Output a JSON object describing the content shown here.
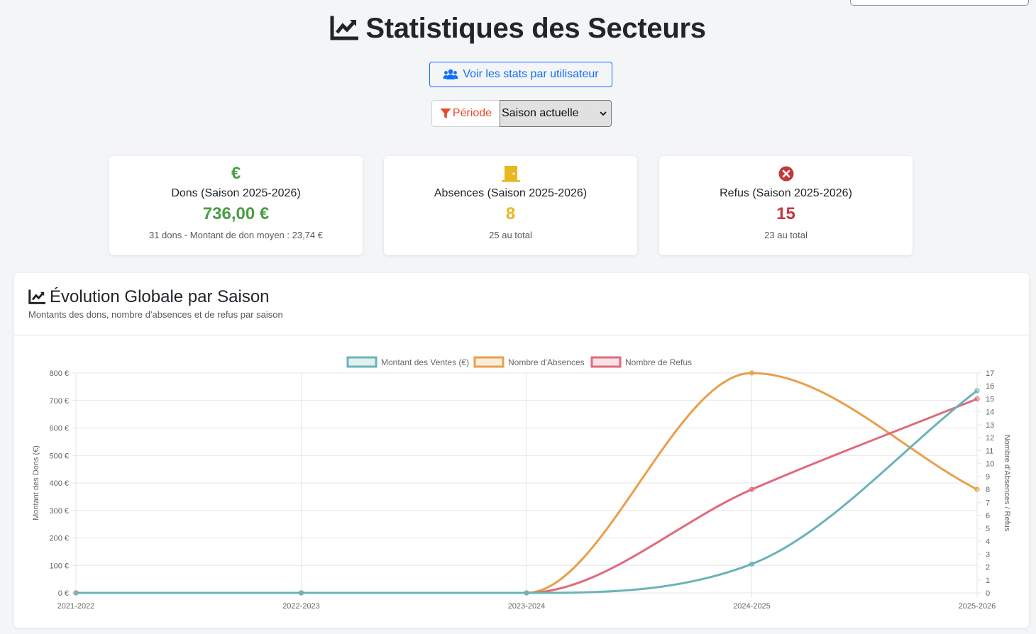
{
  "page": {
    "title": "Statistiques des Secteurs",
    "user_stats_button": "Voir les stats par utilisateur",
    "period_label": "Période",
    "period_selected": "Saison actuelle"
  },
  "stats": [
    {
      "icon": "euro-icon",
      "title": "Dons (Saison 2025-2026)",
      "value": "736,00 €",
      "sub": "31 dons - Montant de don moyen : 23,74 €",
      "color": "#4a9e45"
    },
    {
      "icon": "door-icon",
      "title": "Absences (Saison 2025-2026)",
      "value": "8",
      "sub": "25 au total",
      "color": "#e8b820"
    },
    {
      "icon": "x-circle-icon",
      "title": "Refus (Saison 2025-2026)",
      "value": "15",
      "sub": "23 au total",
      "color": "#c6373a"
    }
  ],
  "chart_section": {
    "title": "Évolution Globale par Saison",
    "subtitle": "Montants des dons, nombre d'absences et de refus par saison"
  },
  "chart_data": {
    "type": "line",
    "categories": [
      "2021-2022",
      "2022-2023",
      "2023-2024",
      "2024-2025",
      "2025-2026"
    ],
    "series": [
      {
        "name": "Montant des Ventes (€)",
        "axis": "left",
        "color": "#6ab3b8",
        "values": [
          0,
          0,
          0,
          105,
          736
        ]
      },
      {
        "name": "Nombre d'Absences",
        "axis": "right",
        "color": "#e8a04b",
        "values": [
          0,
          0,
          0,
          17,
          8
        ]
      },
      {
        "name": "Nombre de Refus",
        "axis": "right",
        "color": "#e06a7c",
        "values": [
          0,
          0,
          0,
          8,
          15
        ]
      }
    ],
    "left_axis": {
      "label": "Montant des Dons (€)",
      "min": 0,
      "max": 800,
      "step": 100,
      "tick_suffix": " €"
    },
    "right_axis": {
      "label": "Nombre d'Absences / Refus",
      "min": 0,
      "max": 17,
      "step": 1
    },
    "grid": true,
    "legend_position": "top"
  }
}
